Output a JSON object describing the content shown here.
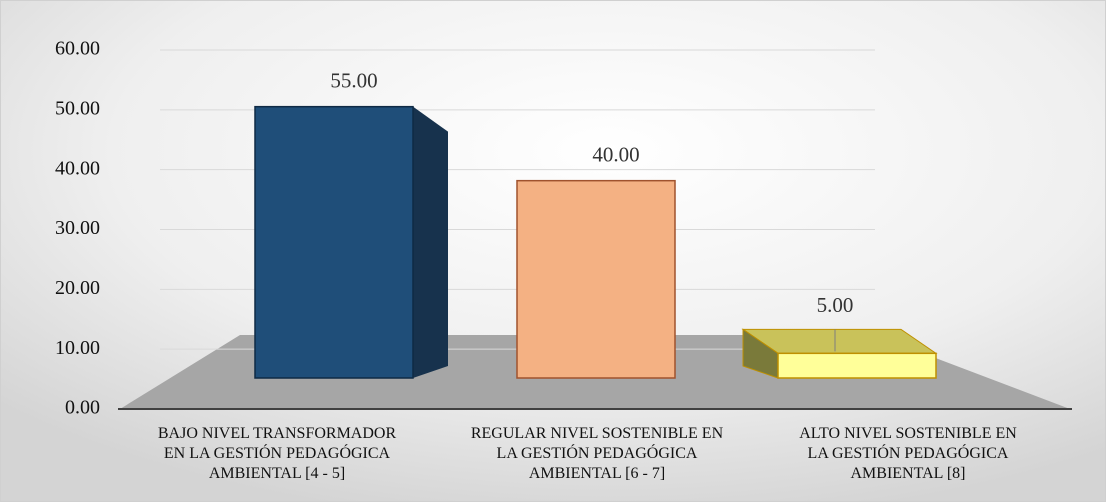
{
  "chart_data": {
    "type": "bar3d",
    "categories": [
      "BAJO NIVEL TRANSFORMADOR EN LA GESTIÓN PEDAGÓGICA AMBIENTAL [4 - 5]",
      "REGULAR NIVEL SOSTENIBLE EN LA GESTIÓN PEDAGÓGICA AMBIENTAL [6 - 7]",
      "ALTO NIVEL SOSTENIBLE EN LA GESTIÓN PEDAGÓGICA AMBIENTAL [8]"
    ],
    "values": [
      55,
      40,
      5
    ],
    "value_labels": [
      "55.00",
      "40.00",
      "5.00"
    ],
    "colors": [
      "#1f4e79",
      "#f4b183",
      "#ffff99"
    ],
    "ylim": [
      0,
      60
    ],
    "yticks": [
      {
        "value": 0,
        "label": "0.00"
      },
      {
        "value": 10,
        "label": "10.00"
      },
      {
        "value": 20,
        "label": "20.00"
      },
      {
        "value": 30,
        "label": "30.00"
      },
      {
        "value": 40,
        "label": "40.00"
      },
      {
        "value": 50,
        "label": "50.00"
      },
      {
        "value": 60,
        "label": "60.00"
      }
    ],
    "grid": true
  }
}
